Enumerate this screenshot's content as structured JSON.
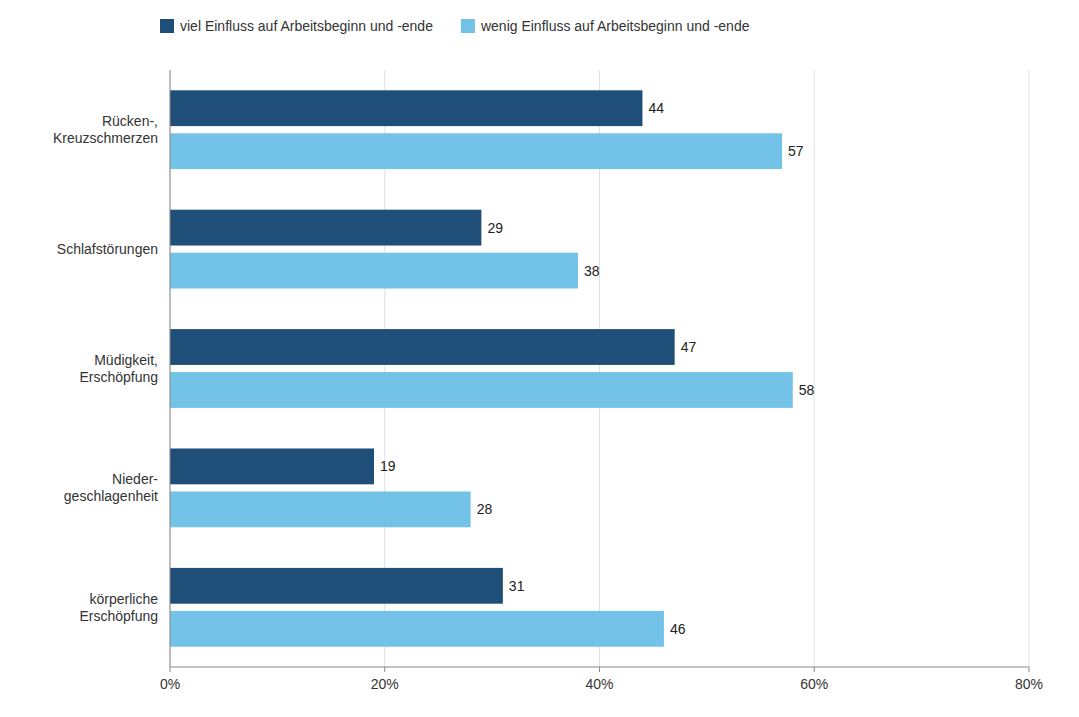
{
  "chart_data": {
    "type": "bar",
    "orientation": "horizontal",
    "categories": [
      "Rücken-,\nKreuzschmerzen",
      "Schlafstörungen",
      "Müdigkeit,\nErschöpfung",
      "Nieder-\ngeschlagenheit",
      "körperliche\nErschöpfung"
    ],
    "series": [
      {
        "name": "viel Einfluss auf Arbeitsbeginn und -ende",
        "color": "#1F4E79",
        "values": [
          44,
          29,
          47,
          19,
          31
        ]
      },
      {
        "name": "wenig Einfluss auf Arbeitsbeginn und -ende",
        "color": "#73C2E8",
        "values": [
          57,
          38,
          58,
          28,
          46
        ]
      }
    ],
    "xlim": [
      0,
      80
    ],
    "xticks": [
      {
        "value": 0,
        "label": "0%"
      },
      {
        "value": 20,
        "label": "20%"
      },
      {
        "value": 40,
        "label": "40%"
      },
      {
        "value": 60,
        "label": "60%"
      },
      {
        "value": 80,
        "label": "80%"
      }
    ],
    "grid": true,
    "legend": "top-left",
    "data_labels": true
  }
}
